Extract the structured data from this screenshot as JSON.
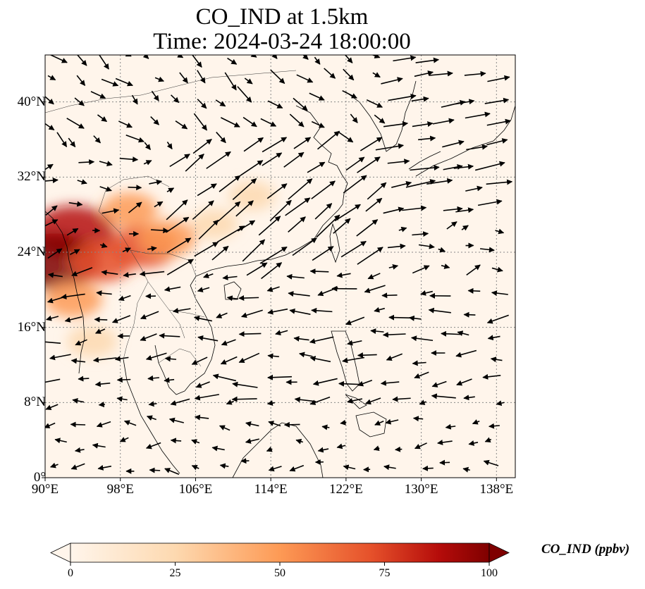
{
  "title": {
    "line1": "CO_IND at 1.5km",
    "line2": "Time: 2024-03-24 18:00:00"
  },
  "map": {
    "extent": {
      "lon_min": 90,
      "lon_max": 140,
      "lat_min": 0,
      "lat_max": 45
    },
    "lat_ticks": [
      {
        "value": 0,
        "label": "0°"
      },
      {
        "value": 8,
        "label": "8°N"
      },
      {
        "value": 16,
        "label": "16°N"
      },
      {
        "value": 24,
        "label": "24°N"
      },
      {
        "value": 32,
        "label": "32°N"
      },
      {
        "value": 40,
        "label": "40°N"
      }
    ],
    "lon_ticks": [
      {
        "value": 90,
        "label": "90°E"
      },
      {
        "value": 98,
        "label": "98°E"
      },
      {
        "value": 106,
        "label": "106°E"
      },
      {
        "value": 114,
        "label": "114°E"
      },
      {
        "value": 122,
        "label": "122°E"
      },
      {
        "value": 130,
        "label": "130°E"
      },
      {
        "value": 138,
        "label": "138°E"
      }
    ],
    "gridlines": true,
    "background_color": "#fff5eb",
    "plumes": [
      {
        "lon": 93.0,
        "lat": 26.2,
        "value": 85
      },
      {
        "lon": 91.0,
        "lat": 23.0,
        "value": 100
      },
      {
        "lon": 96.0,
        "lat": 23.0,
        "value": 50
      },
      {
        "lon": 100.5,
        "lat": 24.6,
        "value": 55
      },
      {
        "lon": 103.0,
        "lat": 25.5,
        "value": 35
      },
      {
        "lon": 99.0,
        "lat": 28.5,
        "value": 30
      },
      {
        "lon": 93.0,
        "lat": 19.0,
        "value": 35
      },
      {
        "lon": 95.0,
        "lat": 14.5,
        "value": 20
      },
      {
        "lon": 108.0,
        "lat": 27.0,
        "value": 15
      },
      {
        "lon": 112.0,
        "lat": 30.0,
        "value": 12
      }
    ]
  },
  "colorbar": {
    "label": "CO_IND (ppbv)",
    "ticks": [
      {
        "value": 0,
        "label": "0"
      },
      {
        "value": 25,
        "label": "25"
      },
      {
        "value": 50,
        "label": "50"
      },
      {
        "value": 75,
        "label": "75"
      },
      {
        "value": 100,
        "label": "100"
      }
    ],
    "colors": [
      "#fff5eb",
      "#fdd9b0",
      "#fd9a55",
      "#e5502a",
      "#b50c0a",
      "#7f0000"
    ]
  }
}
